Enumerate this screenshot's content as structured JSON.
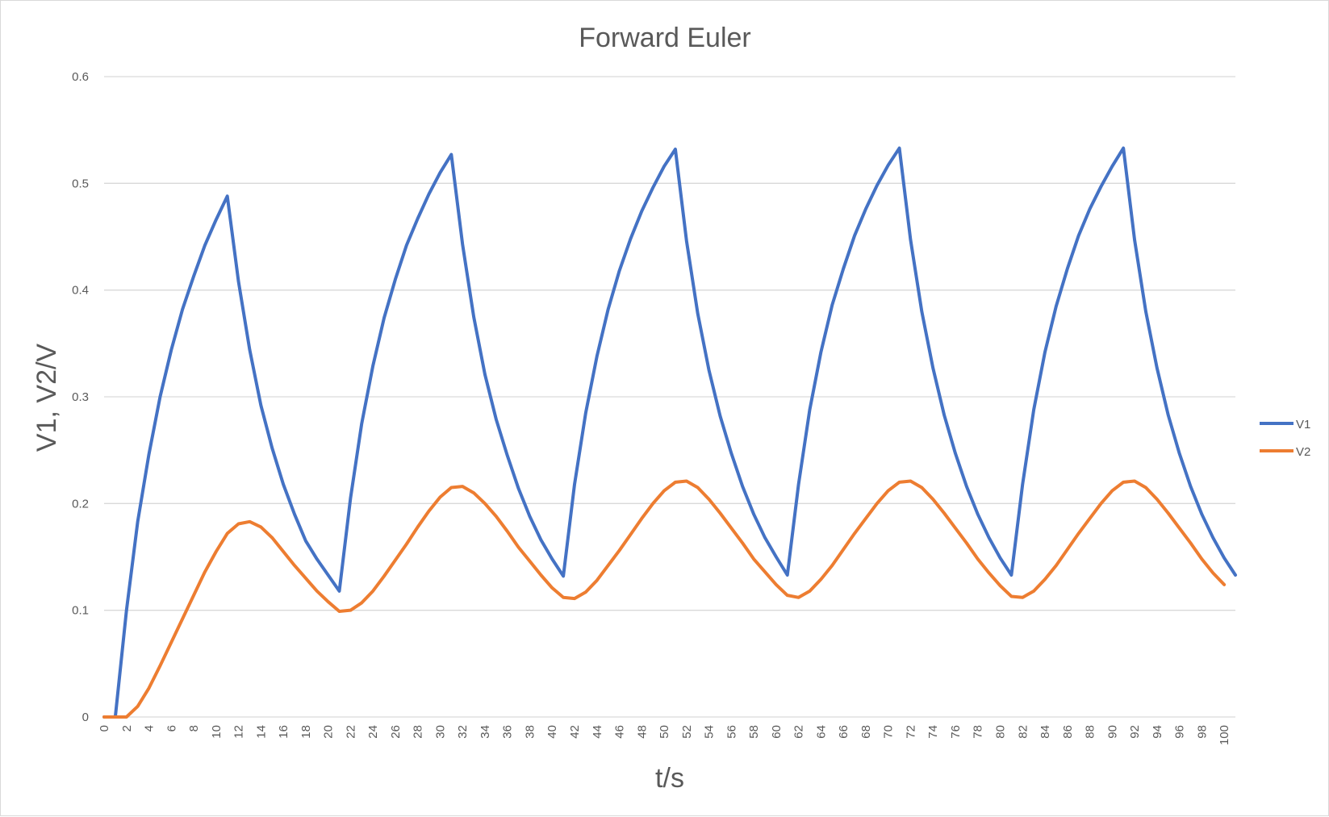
{
  "chart_data": {
    "type": "line",
    "title": "Forward Euler",
    "xlabel": "t/s",
    "ylabel": "V1, V2/V",
    "ylim": [
      0,
      0.6
    ],
    "yticks": [
      "0",
      "0.1",
      "0.2",
      "0.3",
      "0.4",
      "0.5",
      "0.6"
    ],
    "xlim": [
      0,
      101
    ],
    "xtick_step": 2,
    "grid": "horizontal",
    "legend_position": "right",
    "series": [
      {
        "name": "V1",
        "color": "#4472C4",
        "values": [
          0,
          0,
          0.1,
          0.183,
          0.246,
          0.3,
          0.344,
          0.382,
          0.413,
          0.442,
          0.466,
          0.488,
          0.408,
          0.344,
          0.292,
          0.252,
          0.218,
          0.19,
          0.165,
          0.148,
          0.133,
          0.118,
          0.205,
          0.275,
          0.329,
          0.374,
          0.41,
          0.442,
          0.467,
          0.49,
          0.51,
          0.527,
          0.443,
          0.375,
          0.321,
          0.279,
          0.245,
          0.214,
          0.188,
          0.166,
          0.148,
          0.132,
          0.218,
          0.285,
          0.338,
          0.382,
          0.418,
          0.448,
          0.474,
          0.496,
          0.516,
          0.532,
          0.446,
          0.378,
          0.325,
          0.282,
          0.247,
          0.216,
          0.19,
          0.168,
          0.15,
          0.133,
          0.218,
          0.288,
          0.342,
          0.386,
          0.42,
          0.451,
          0.476,
          0.498,
          0.517,
          0.533,
          0.447,
          0.38,
          0.327,
          0.283,
          0.247,
          0.216,
          0.19,
          0.168,
          0.149,
          0.133,
          0.218,
          0.288,
          0.342,
          0.385,
          0.42,
          0.451,
          0.476,
          0.497,
          0.516,
          0.533,
          0.447,
          0.38,
          0.327,
          0.283,
          0.247,
          0.216,
          0.19,
          0.168,
          0.149,
          0.133
        ]
      },
      {
        "name": "V2",
        "color": "#ED7D31",
        "values": [
          0,
          0,
          0,
          0.01,
          0.027,
          0.048,
          0.07,
          0.092,
          0.114,
          0.136,
          0.155,
          0.172,
          0.181,
          0.183,
          0.178,
          0.168,
          0.155,
          0.142,
          0.13,
          0.118,
          0.108,
          0.099,
          0.1,
          0.107,
          0.118,
          0.132,
          0.147,
          0.162,
          0.178,
          0.193,
          0.206,
          0.215,
          0.216,
          0.21,
          0.2,
          0.188,
          0.174,
          0.159,
          0.146,
          0.133,
          0.121,
          0.112,
          0.111,
          0.117,
          0.128,
          0.142,
          0.156,
          0.171,
          0.186,
          0.2,
          0.212,
          0.22,
          0.221,
          0.215,
          0.204,
          0.191,
          0.177,
          0.163,
          0.148,
          0.136,
          0.124,
          0.114,
          0.112,
          0.118,
          0.129,
          0.142,
          0.157,
          0.172,
          0.186,
          0.2,
          0.212,
          0.22,
          0.221,
          0.215,
          0.204,
          0.191,
          0.177,
          0.163,
          0.148,
          0.135,
          0.123,
          0.113,
          0.112,
          0.118,
          0.129,
          0.142,
          0.157,
          0.172,
          0.186,
          0.2,
          0.212,
          0.22,
          0.221,
          0.215,
          0.204,
          0.191,
          0.177,
          0.163,
          0.148,
          0.135,
          0.124
        ]
      }
    ]
  }
}
